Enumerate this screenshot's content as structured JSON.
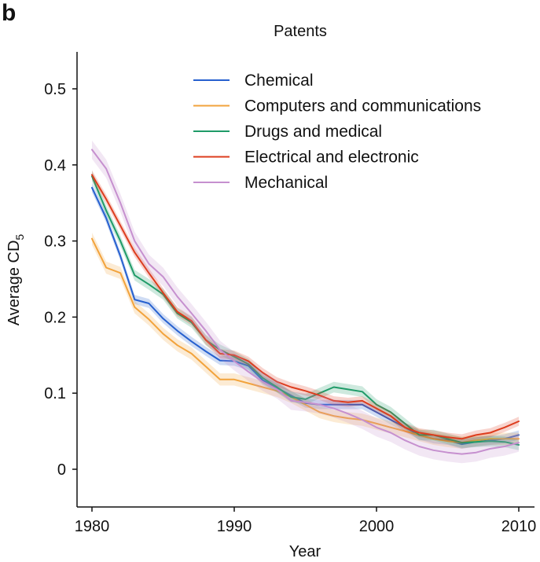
{
  "panel_label": "b",
  "chart_data": {
    "type": "line",
    "title": "Patents",
    "xlabel": "Year",
    "ylabel": "Average CD",
    "ylabel_subscript": "5",
    "xlim": [
      1979.3,
      2010.5
    ],
    "ylim": [
      -0.05,
      0.55
    ],
    "xticks": [
      1980,
      1990,
      2000,
      2010
    ],
    "yticks": [
      0,
      0.1,
      0.2,
      0.3,
      0.4,
      0.5
    ],
    "ytick_labels": [
      "0",
      "0.1",
      "0.2",
      "0.3",
      "0.4",
      "0.5"
    ],
    "grid": false,
    "legend_position": "top-right",
    "x": [
      1980,
      1981,
      1982,
      1983,
      1984,
      1985,
      1986,
      1987,
      1988,
      1989,
      1990,
      1991,
      1992,
      1993,
      1994,
      1995,
      1996,
      1997,
      1998,
      1999,
      2000,
      2001,
      2002,
      2003,
      2004,
      2005,
      2006,
      2007,
      2008,
      2009,
      2010
    ],
    "series": [
      {
        "name": "Chemical",
        "color": "#2660cf",
        "band": 0.006,
        "values": [
          0.37,
          0.33,
          0.28,
          0.223,
          0.218,
          0.198,
          0.182,
          0.168,
          0.155,
          0.143,
          0.142,
          0.136,
          0.117,
          0.107,
          0.097,
          0.087,
          0.085,
          0.085,
          0.085,
          0.085,
          0.075,
          0.065,
          0.055,
          0.045,
          0.04,
          0.038,
          0.033,
          0.036,
          0.038,
          0.04,
          0.045
        ]
      },
      {
        "name": "Computers and communications",
        "color": "#f2a33c",
        "band": 0.008,
        "values": [
          0.303,
          0.265,
          0.258,
          0.213,
          0.197,
          0.178,
          0.163,
          0.152,
          0.135,
          0.118,
          0.118,
          0.113,
          0.108,
          0.103,
          0.095,
          0.085,
          0.075,
          0.07,
          0.067,
          0.065,
          0.06,
          0.055,
          0.05,
          0.045,
          0.04,
          0.037,
          0.035,
          0.038,
          0.04,
          0.04,
          0.04
        ]
      },
      {
        "name": "Drugs and medical",
        "color": "#1f9b68",
        "band": 0.007,
        "values": [
          0.385,
          0.34,
          0.3,
          0.255,
          0.243,
          0.23,
          0.205,
          0.193,
          0.17,
          0.157,
          0.148,
          0.138,
          0.12,
          0.108,
          0.095,
          0.092,
          0.1,
          0.108,
          0.105,
          0.102,
          0.085,
          0.075,
          0.06,
          0.045,
          0.045,
          0.04,
          0.035,
          0.036,
          0.037,
          0.036,
          0.032
        ]
      },
      {
        "name": "Electrical and electronic",
        "color": "#dd3d1e",
        "band": 0.006,
        "values": [
          0.387,
          0.355,
          0.32,
          0.285,
          0.258,
          0.232,
          0.207,
          0.195,
          0.17,
          0.152,
          0.15,
          0.142,
          0.127,
          0.115,
          0.108,
          0.103,
          0.097,
          0.09,
          0.088,
          0.09,
          0.08,
          0.07,
          0.055,
          0.048,
          0.045,
          0.042,
          0.04,
          0.045,
          0.048,
          0.055,
          0.063
        ]
      },
      {
        "name": "Mechanical",
        "color": "#c690cf",
        "band": 0.012,
        "values": [
          0.42,
          0.395,
          0.35,
          0.3,
          0.27,
          0.253,
          0.227,
          0.205,
          0.182,
          0.157,
          0.142,
          0.128,
          0.115,
          0.105,
          0.09,
          0.088,
          0.085,
          0.08,
          0.073,
          0.065,
          0.055,
          0.048,
          0.038,
          0.03,
          0.025,
          0.022,
          0.02,
          0.022,
          0.027,
          0.03,
          0.035
        ]
      }
    ]
  }
}
